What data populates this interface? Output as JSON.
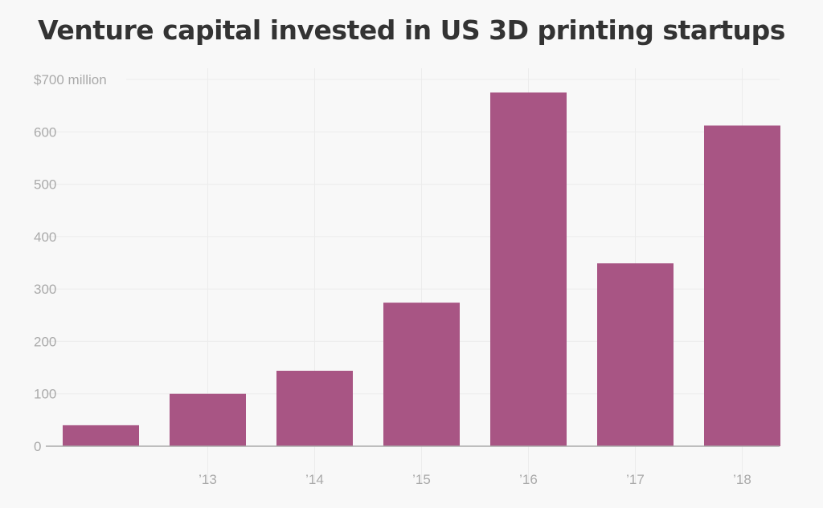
{
  "chart_data": {
    "type": "bar",
    "title": "Venture capital invested in US 3D printing startups",
    "categories": [
      "",
      "’13",
      "’14",
      "’15",
      "’16",
      "’17",
      "’18"
    ],
    "values": [
      40,
      100,
      144,
      274,
      675,
      349,
      612
    ],
    "ylim": [
      0,
      700
    ],
    "yticks": [
      0,
      100,
      200,
      300,
      400,
      500,
      600,
      700
    ],
    "ytick_labels": [
      "0",
      "100",
      "200",
      "300",
      "400",
      "500",
      "600",
      "$700 million"
    ],
    "grid": true,
    "bar_color": "#a85584"
  }
}
